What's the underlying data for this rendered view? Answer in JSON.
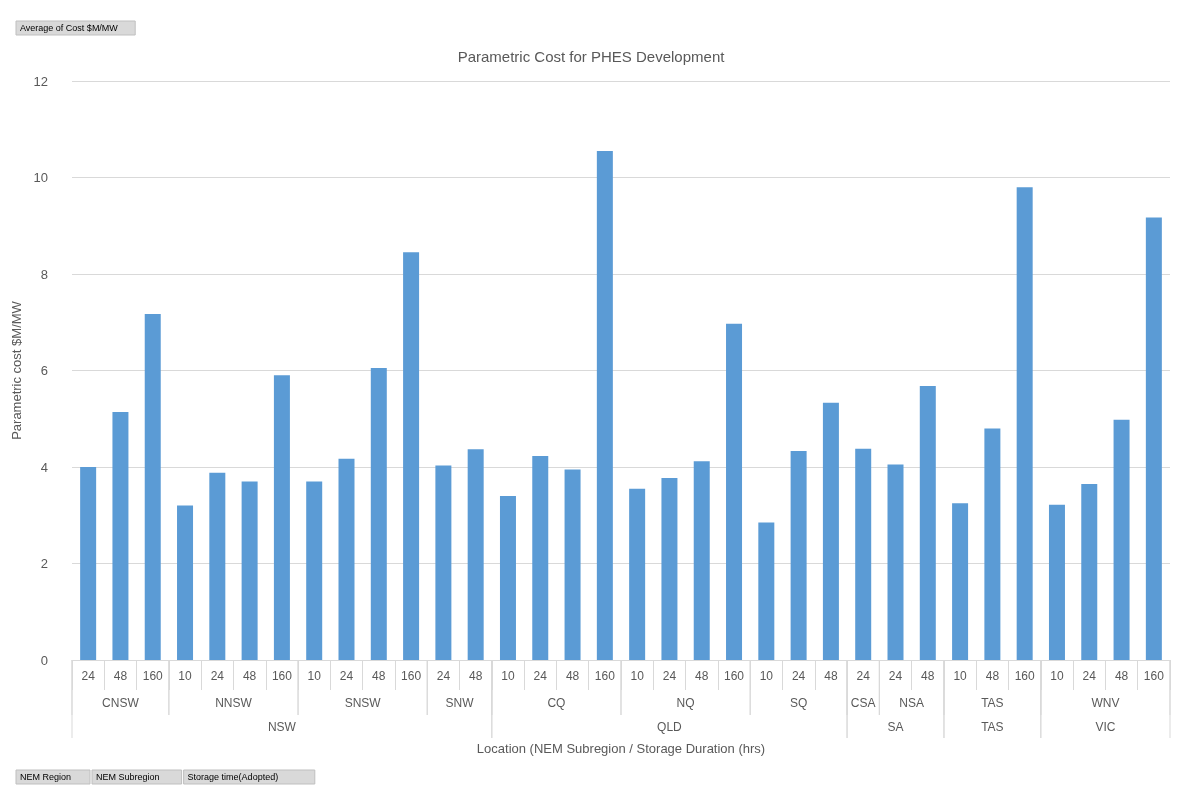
{
  "chart_data": {
    "type": "bar",
    "title": "Parametric Cost for PHES Development",
    "xlabel": "Location (NEM Subregion / Storage Duration (hrs)",
    "ylabel": "Parametric cost $M/MW",
    "categories": [
      "24",
      "48",
      "160",
      "10",
      "24",
      "48",
      "160",
      "10",
      "24",
      "48",
      "160",
      "24",
      "48",
      "10",
      "24",
      "48",
      "160",
      "10",
      "24",
      "48",
      "160",
      "10",
      "24",
      "48",
      "24",
      "24",
      "48",
      "10",
      "48",
      "160",
      "10",
      "24",
      "48",
      "160"
    ],
    "series": [
      {
        "color": "#5b9bd5",
        "values": [
          4.0,
          5.14,
          7.17,
          3.2,
          3.88,
          3.7,
          5.9,
          3.7,
          4.17,
          6.05,
          8.45,
          4.03,
          4.37,
          null,
          null,
          null,
          null,
          null,
          null,
          null,
          null,
          null,
          null,
          null,
          null,
          null,
          null,
          null,
          null,
          null,
          null,
          null,
          null,
          null
        ]
      },
      {
        "color": "#5b9bd5",
        "values": [
          null,
          null,
          null,
          null,
          null,
          null,
          null,
          null,
          null,
          null,
          null,
          null,
          null,
          3.4,
          4.23,
          3.95,
          10.55,
          3.55,
          3.77,
          4.12,
          6.97,
          2.85,
          4.33,
          5.33,
          null,
          null,
          null,
          null,
          null,
          null,
          null,
          null,
          null,
          null
        ]
      },
      {
        "color": "#5b9bd5",
        "values": [
          null,
          null,
          null,
          null,
          null,
          null,
          null,
          null,
          null,
          null,
          null,
          null,
          null,
          null,
          null,
          null,
          null,
          null,
          null,
          null,
          null,
          null,
          null,
          null,
          4.38,
          4.05,
          5.68,
          null,
          null,
          null,
          null,
          null,
          null,
          null
        ]
      },
      {
        "color": "#5b9bd5",
        "values": [
          null,
          null,
          null,
          null,
          null,
          null,
          null,
          null,
          null,
          null,
          null,
          null,
          null,
          null,
          null,
          null,
          null,
          null,
          null,
          null,
          null,
          null,
          null,
          null,
          null,
          null,
          null,
          3.25,
          4.8,
          9.8,
          null,
          null,
          null,
          null
        ]
      },
      {
        "color": "#5b9bd5",
        "values": [
          null,
          null,
          null,
          null,
          null,
          null,
          null,
          null,
          null,
          null,
          null,
          null,
          null,
          null,
          null,
          null,
          null,
          null,
          null,
          null,
          null,
          null,
          null,
          null,
          null,
          null,
          null,
          null,
          null,
          null,
          3.22,
          3.65,
          4.98,
          9.17
        ]
      }
    ],
    "ylim": [
      0,
      12
    ],
    "yticks": [
      0,
      2,
      4,
      6,
      8,
      10,
      12
    ],
    "grid": "y",
    "annotations": [
      "CNSW",
      "NNSW",
      "SNSW",
      "SNW",
      "CQ",
      "NQ",
      "SQ",
      "CSA",
      "NSA",
      "TAS",
      "WNV",
      "NSW",
      "QLD",
      "SA",
      "TAS",
      "VIC",
      "Average of Cost $M/MW",
      "NEM Region",
      "NEM Subregion",
      "Storage time(Adopted)"
    ]
  }
}
